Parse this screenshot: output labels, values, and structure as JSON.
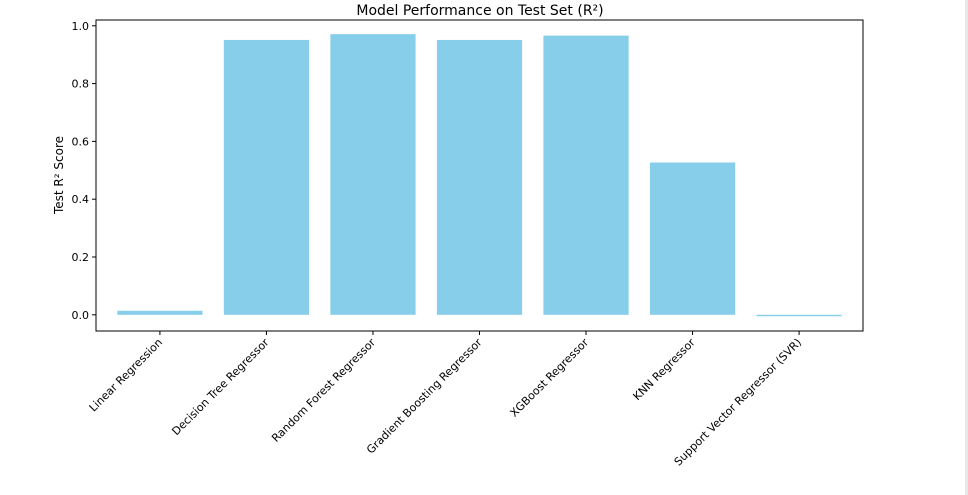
{
  "chart_data": {
    "type": "bar",
    "title": "Model Performance on Test Set (R²)",
    "xlabel": "",
    "ylabel": "Test R² Score",
    "categories": [
      "Linear Regression",
      "Decision Tree Regressor",
      "Random Forest Regressor",
      "Gradient Boosting Regressor",
      "XGBoost Regressor",
      "KNN Regressor",
      "Support Vector Regressor (SVR)"
    ],
    "values": [
      0.014,
      0.951,
      0.971,
      0.951,
      0.966,
      0.527,
      -0.005
    ],
    "ylim": [
      -0.056,
      1.02
    ],
    "yticks": [
      "0.0",
      "0.2",
      "0.4",
      "0.6",
      "0.8",
      "1.0"
    ],
    "grid": false,
    "bar_color": "#87CEEB"
  }
}
